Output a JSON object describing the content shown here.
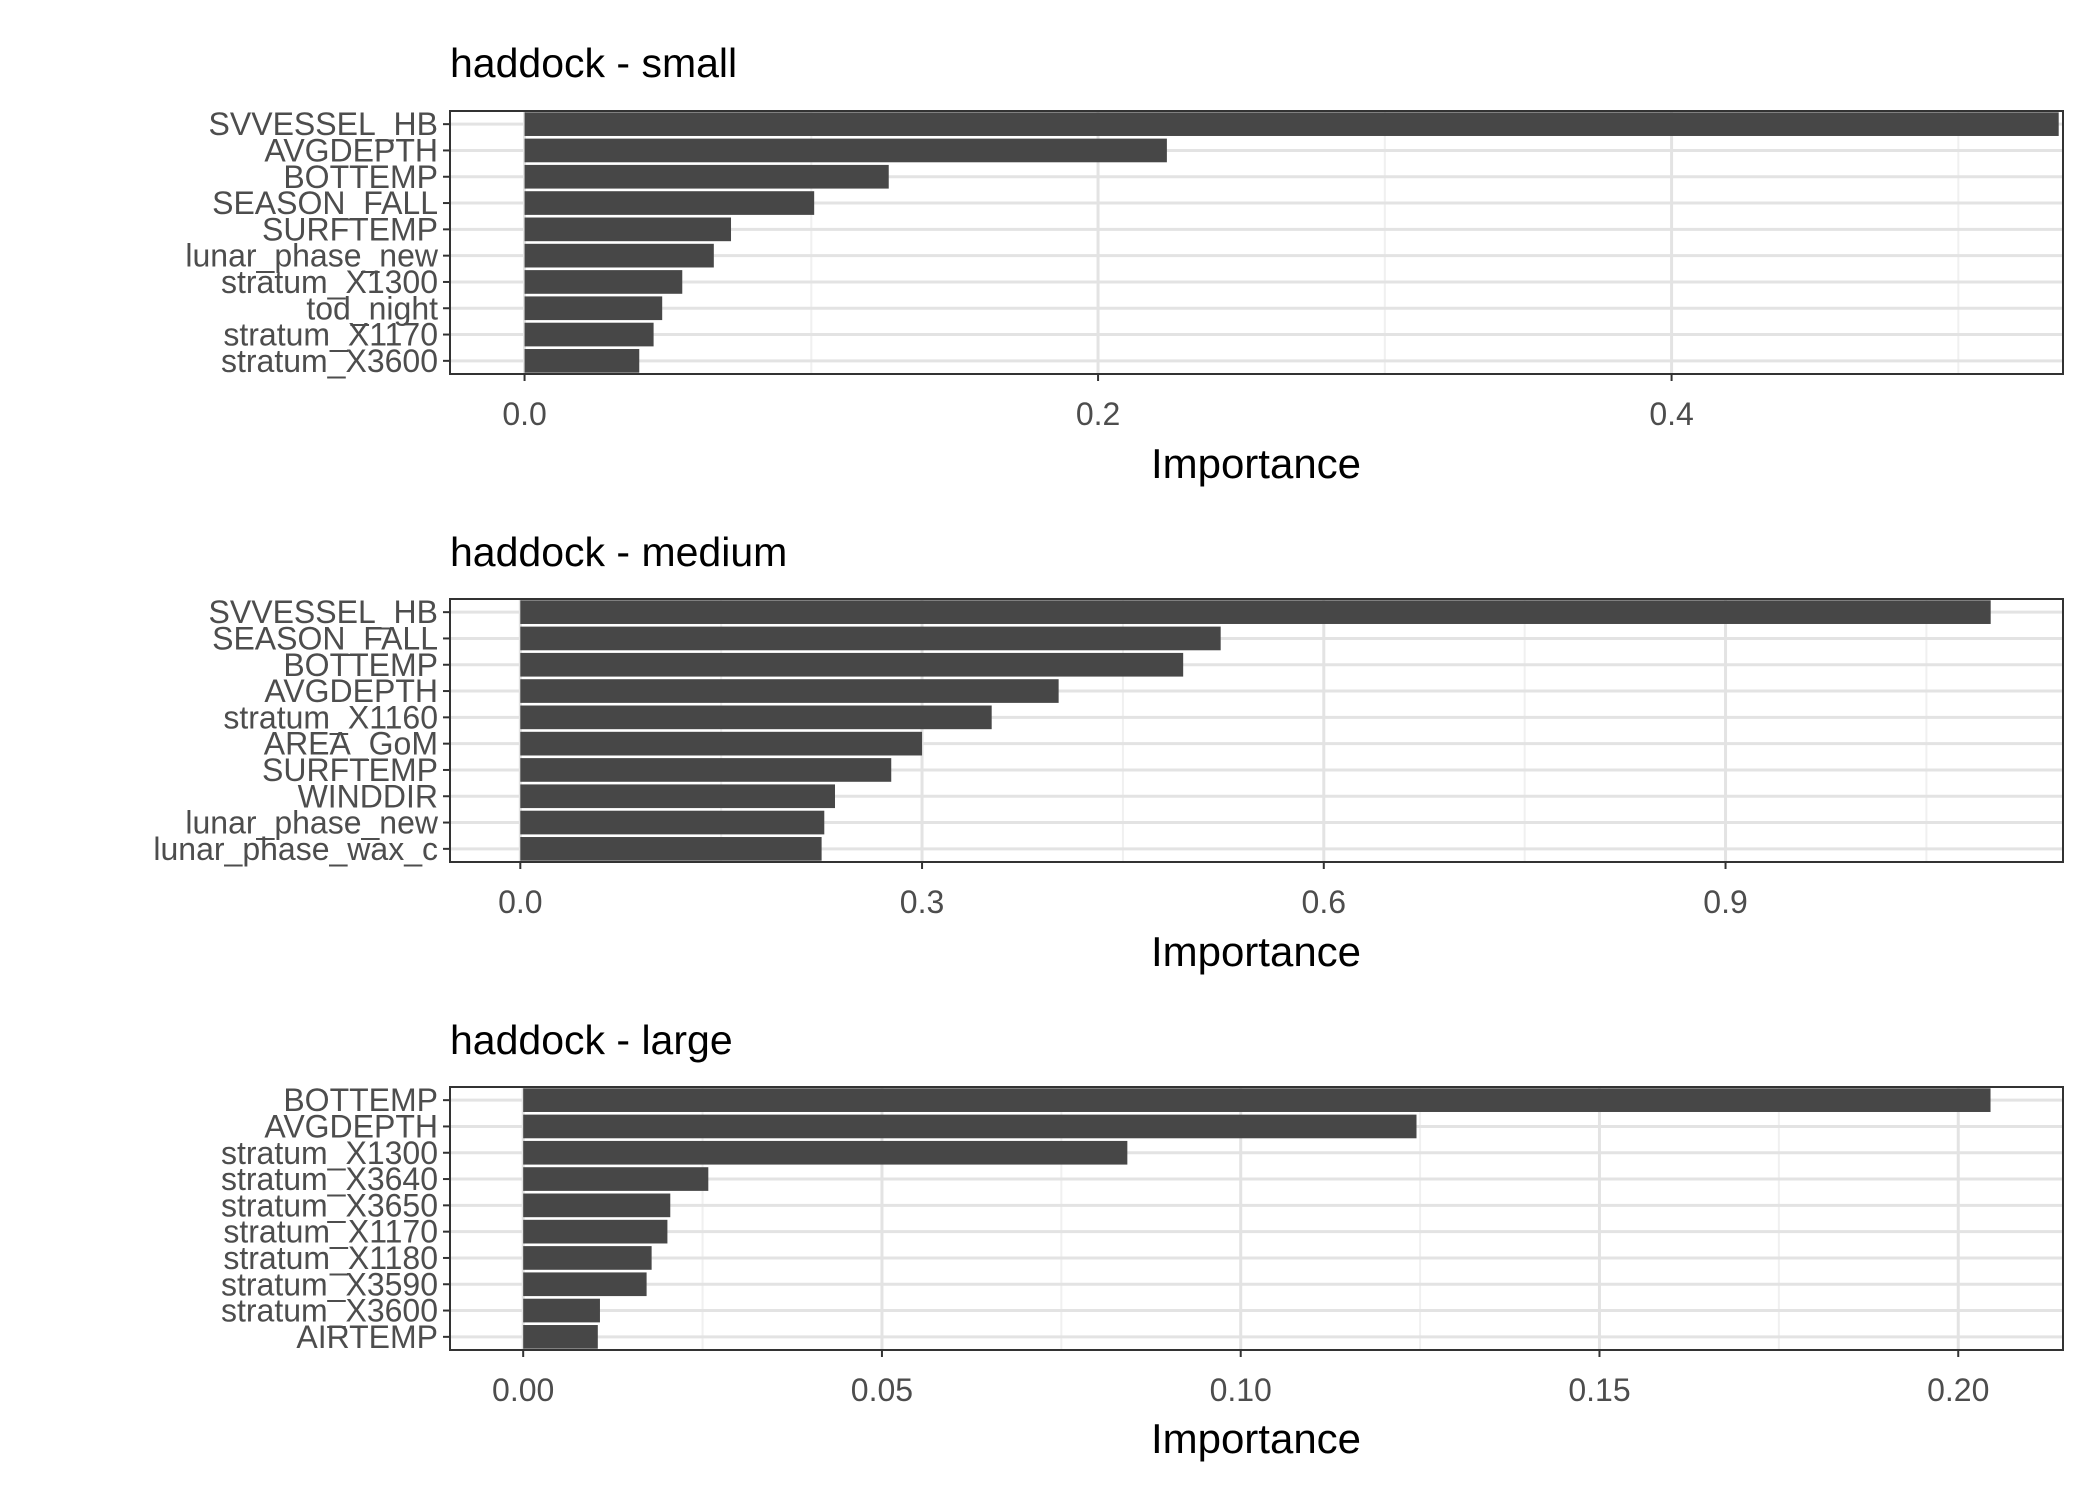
{
  "chart_data": [
    {
      "type": "bar",
      "orientation": "horizontal",
      "title": "haddock - small",
      "xlabel": "Importance",
      "ylabel": "",
      "xlim": [
        -0.026,
        0.5365
      ],
      "xticks": [
        0.0,
        0.2,
        0.4
      ],
      "xtick_labels": [
        "0.0",
        "0.2",
        "0.4"
      ],
      "grid": true,
      "categories": [
        "SVVESSEL_HB",
        "AVGDEPTH",
        "BOTTEMP",
        "SEASON_FALL",
        "SURFTEMP",
        "lunar_phase_new",
        "stratum_X1300",
        "tod_night",
        "stratum_X1170",
        "stratum_X3600"
      ],
      "values": [
        0.535,
        0.224,
        0.127,
        0.101,
        0.072,
        0.066,
        0.055,
        0.048,
        0.045,
        0.04
      ],
      "bar_color": "#474747"
    },
    {
      "type": "bar",
      "orientation": "horizontal",
      "title": "haddock - medium",
      "xlabel": "Importance",
      "ylabel": "",
      "xlim": [
        -0.0525,
        1.152
      ],
      "xticks": [
        0.0,
        0.3,
        0.6,
        0.9
      ],
      "xtick_labels": [
        "0.0",
        "0.3",
        "0.6",
        "0.9"
      ],
      "grid": true,
      "categories": [
        "SVVESSEL_HB",
        "SEASON_FALL",
        "BOTTEMP",
        "AVGDEPTH",
        "stratum_X1160",
        "AREA_GoM",
        "SURFTEMP",
        "WINDDIR",
        "lunar_phase_new",
        "lunar_phase_wax_c"
      ],
      "values": [
        1.098,
        0.523,
        0.495,
        0.402,
        0.352,
        0.3,
        0.277,
        0.235,
        0.227,
        0.225
      ],
      "bar_color": "#474747"
    },
    {
      "type": "bar",
      "orientation": "horizontal",
      "title": "haddock - large",
      "xlabel": "Importance",
      "ylabel": "",
      "xlim": [
        -0.0102,
        0.2146
      ],
      "xticks": [
        0.0,
        0.05,
        0.1,
        0.15,
        0.2
      ],
      "xtick_labels": [
        "0.00",
        "0.05",
        "0.10",
        "0.15",
        "0.20"
      ],
      "grid": true,
      "categories": [
        "BOTTEMP",
        "AVGDEPTH",
        "stratum_X1300",
        "stratum_X3640",
        "stratum_X3650",
        "stratum_X1170",
        "stratum_X1180",
        "stratum_X3590",
        "stratum_X3600",
        "AIRTEMP"
      ],
      "values": [
        0.2045,
        0.1245,
        0.0842,
        0.0258,
        0.0205,
        0.0201,
        0.0179,
        0.0172,
        0.0107,
        0.0104
      ],
      "bar_color": "#474747"
    }
  ]
}
